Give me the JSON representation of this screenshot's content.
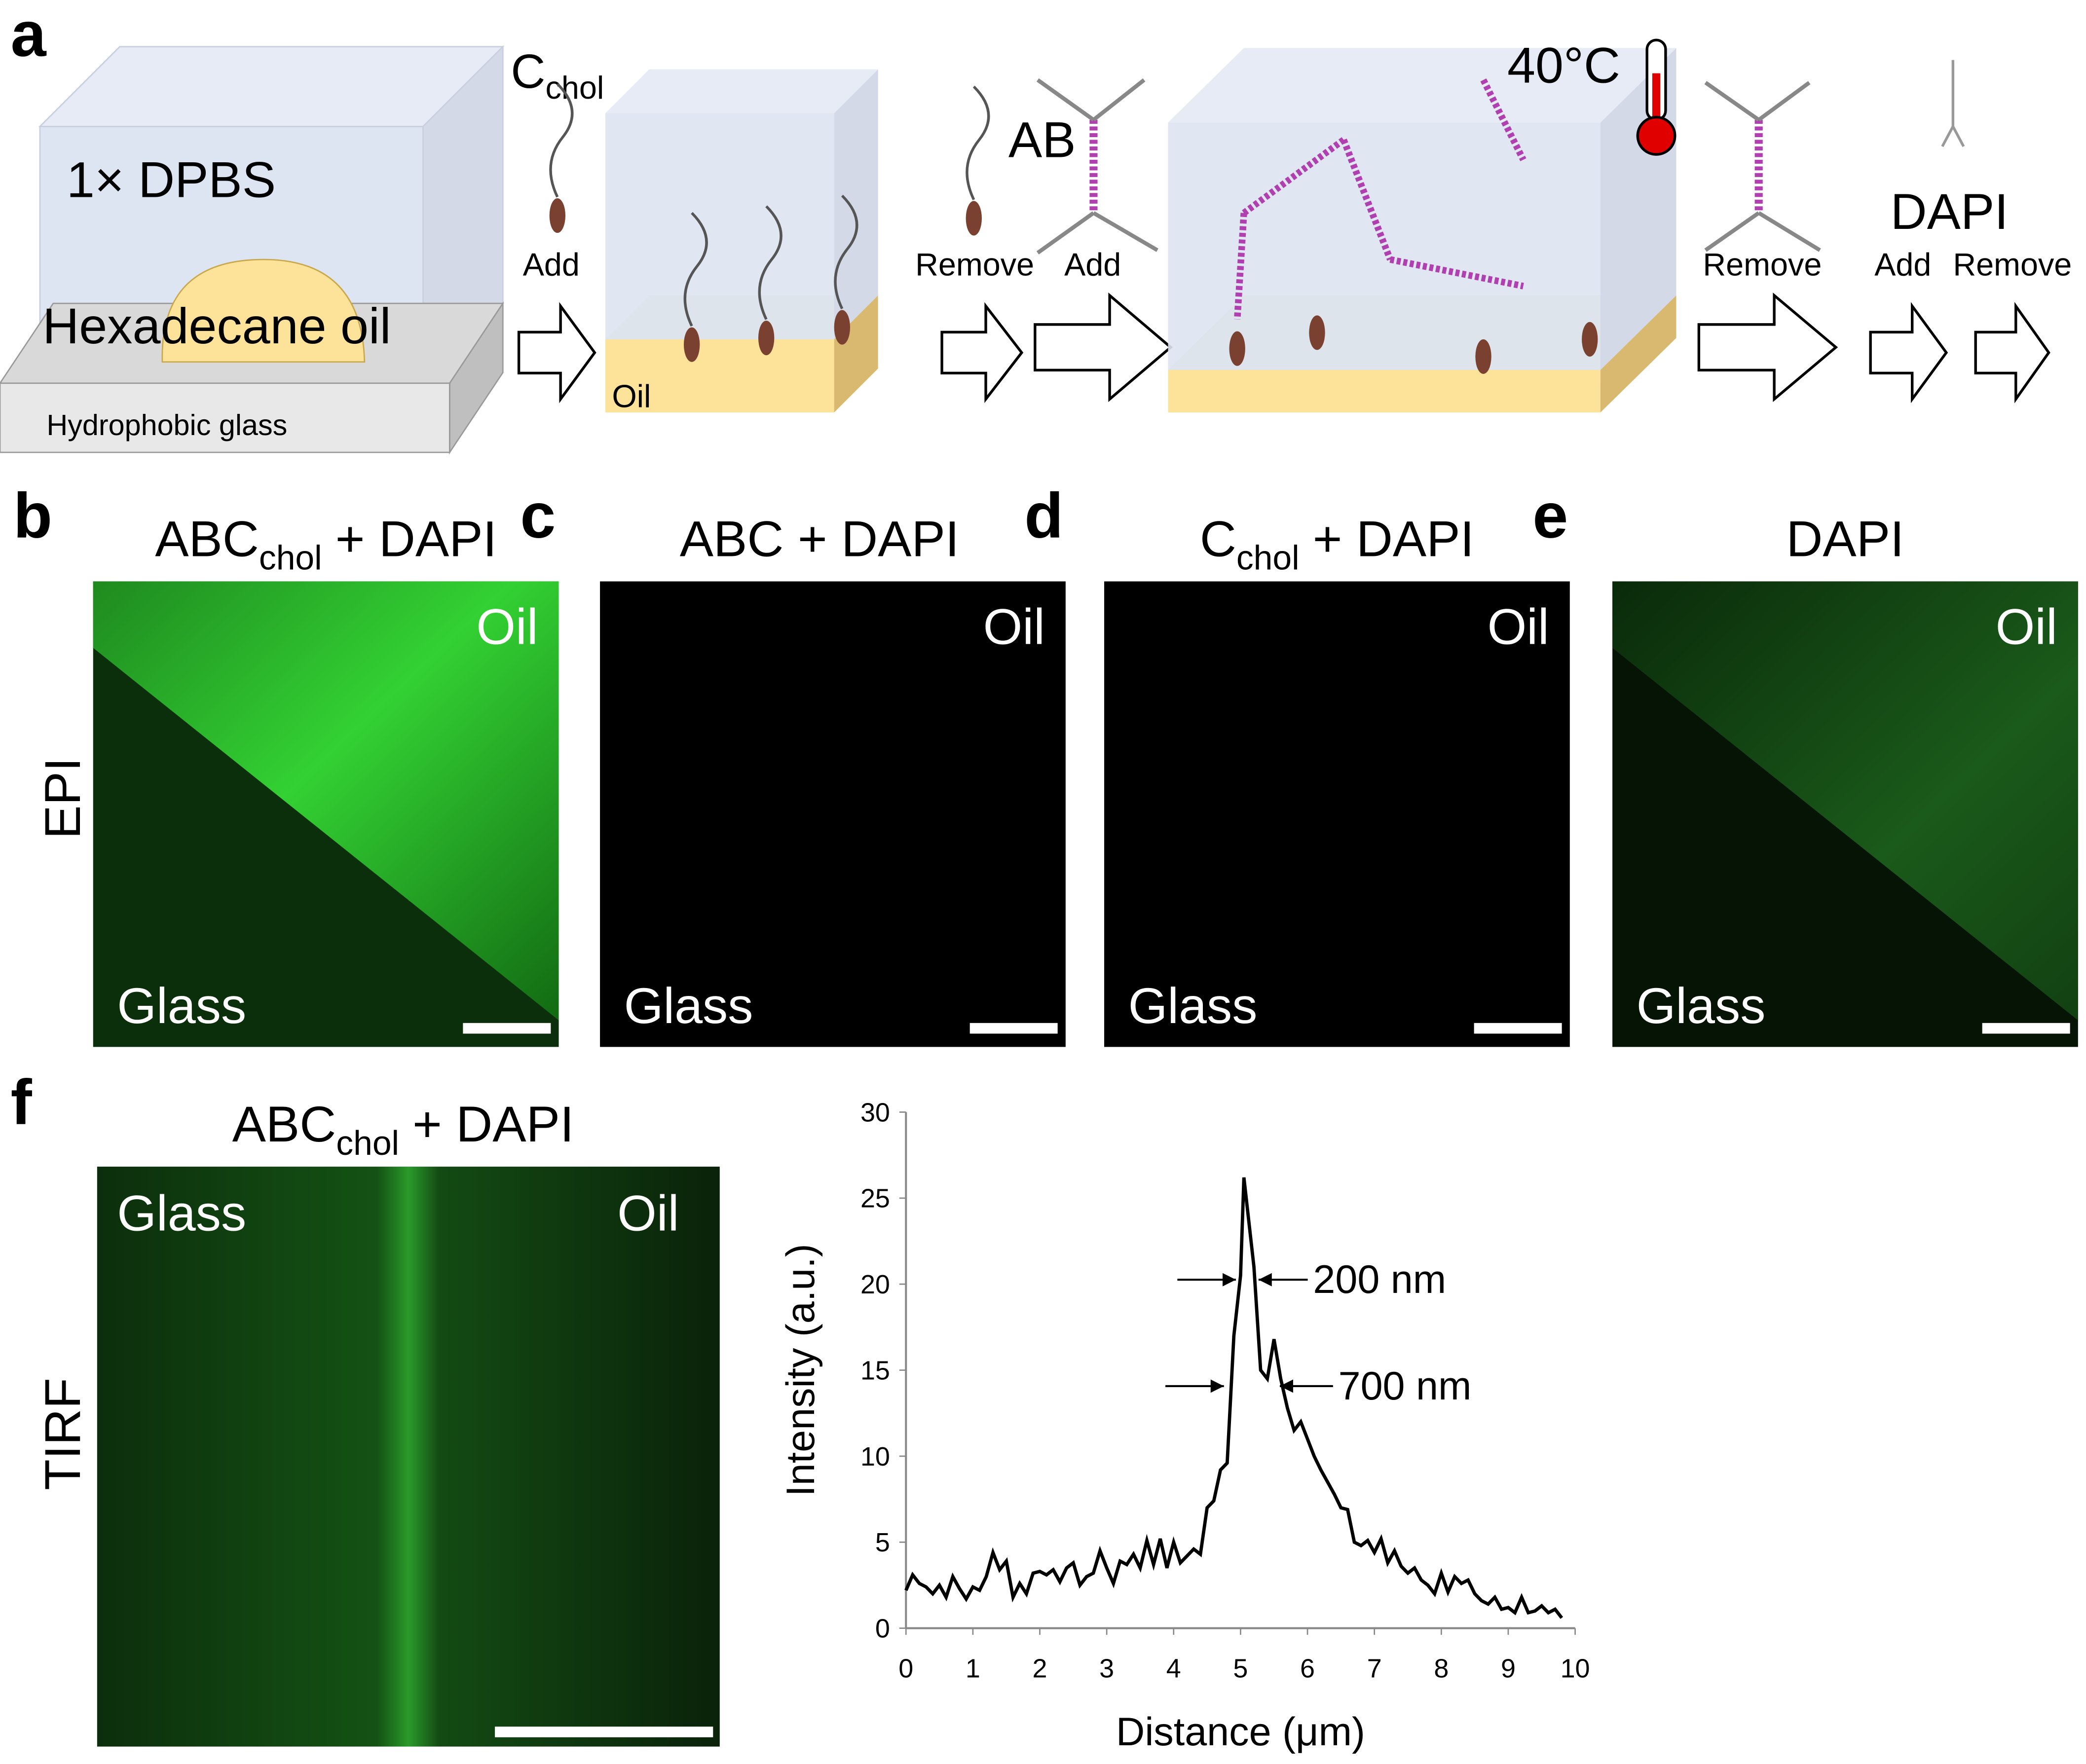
{
  "schematic": {
    "letter": "a",
    "dpbs": "1× DPBS",
    "oil_drop": "Hexadecane oil",
    "glass": "Hydrophobic glass",
    "c_chol": {
      "main": "C",
      "sub": "chol"
    },
    "step1_add": "Add",
    "oil_layer": "Oil",
    "step2_remove": "Remove",
    "step2_add": "Add",
    "ab": "AB",
    "temp": "40°C",
    "step3_remove": "Remove",
    "dapi": "DAPI",
    "step4_add": "Add",
    "step4_remove": "Remove"
  },
  "epi": {
    "row_label": "EPI",
    "panels": [
      {
        "letter": "b",
        "title": {
          "main": "ABC",
          "sub": "chol",
          "rest": "+ DAPI"
        },
        "top": "Oil",
        "bottom": "Glass"
      },
      {
        "letter": "c",
        "title": {
          "main": "ABC + DAPI"
        },
        "top": "Oil",
        "bottom": "Glass"
      },
      {
        "letter": "d",
        "title": {
          "main": "C",
          "sub": "chol",
          "rest": "+ DAPI"
        },
        "top": "Oil",
        "bottom": "Glass"
      },
      {
        "letter": "e",
        "title": {
          "main": "DAPI"
        },
        "top": "Oil",
        "bottom": "Glass"
      }
    ]
  },
  "tirf": {
    "letter": "f",
    "row_label": "TIRF",
    "title": {
      "main": "ABC",
      "sub": "chol",
      "rest": "+ DAPI"
    },
    "left": "Glass",
    "right": "Oil"
  },
  "chart_data": {
    "type": "line",
    "x_label": "Distance (μm)",
    "y_label": "Intensity  (a.u.)",
    "color": "#000000",
    "xlim": [
      0,
      10
    ],
    "ylim": [
      0,
      30
    ],
    "xticks": [
      0,
      1,
      2,
      3,
      4,
      5,
      6,
      7,
      8,
      9,
      10
    ],
    "yticks": [
      0,
      5,
      10,
      15,
      20,
      25,
      30
    ],
    "x": [
      0,
      0.1,
      0.2,
      0.3,
      0.4,
      0.5,
      0.6,
      0.7,
      0.8,
      0.9,
      1.0,
      1.1,
      1.2,
      1.3,
      1.4,
      1.5,
      1.6,
      1.7,
      1.8,
      1.9,
      2.0,
      2.1,
      2.2,
      2.3,
      2.4,
      2.5,
      2.6,
      2.7,
      2.8,
      2.9,
      3.0,
      3.1,
      3.2,
      3.3,
      3.4,
      3.5,
      3.6,
      3.7,
      3.8,
      3.9,
      4.0,
      4.1,
      4.2,
      4.3,
      4.4,
      4.5,
      4.6,
      4.7,
      4.8,
      4.9,
      5.0,
      5.05,
      5.2,
      5.3,
      5.4,
      5.5,
      5.6,
      5.7,
      5.8,
      5.9,
      6.0,
      6.1,
      6.2,
      6.3,
      6.4,
      6.5,
      6.6,
      6.7,
      6.8,
      6.9,
      7.0,
      7.1,
      7.2,
      7.3,
      7.4,
      7.5,
      7.6,
      7.7,
      7.8,
      7.9,
      8.0,
      8.1,
      8.2,
      8.3,
      8.4,
      8.5,
      8.6,
      8.7,
      8.8,
      8.9,
      9.0,
      9.1,
      9.2,
      9.3,
      9.4,
      9.5,
      9.6,
      9.7,
      9.8
    ],
    "values": [
      2.2,
      3.1,
      2.6,
      2.4,
      2.0,
      2.5,
      1.8,
      3.0,
      2.3,
      1.7,
      2.4,
      2.2,
      3.0,
      4.4,
      3.4,
      3.9,
      1.8,
      2.6,
      2.0,
      3.2,
      3.3,
      3.1,
      3.4,
      2.7,
      3.5,
      3.8,
      2.5,
      3.0,
      3.2,
      4.5,
      3.5,
      2.6,
      3.9,
      3.7,
      4.3,
      3.5,
      5.1,
      3.7,
      5.2,
      3.5,
      5.0,
      3.8,
      4.2,
      4.6,
      4.3,
      7.0,
      7.4,
      9.2,
      9.6,
      17,
      20.5,
      26.2,
      21,
      15,
      14.5,
      16.8,
      14.5,
      12.8,
      11.5,
      12,
      11,
      10,
      9.2,
      8.5,
      7.8,
      7.0,
      6.9,
      5.0,
      4.8,
      5.1,
      4.4,
      5.2,
      3.8,
      4.5,
      3.6,
      3.2,
      3.5,
      2.8,
      2.5,
      2.0,
      3.2,
      2.1,
      3.0,
      2.6,
      2.8,
      2.0,
      1.6,
      1.4,
      1.8,
      1.1,
      1.2,
      0.9,
      1.8,
      0.9,
      1.0,
      1.3,
      0.9,
      1.1,
      0.6
    ],
    "annotations": [
      "200 nm",
      "700 nm"
    ]
  }
}
